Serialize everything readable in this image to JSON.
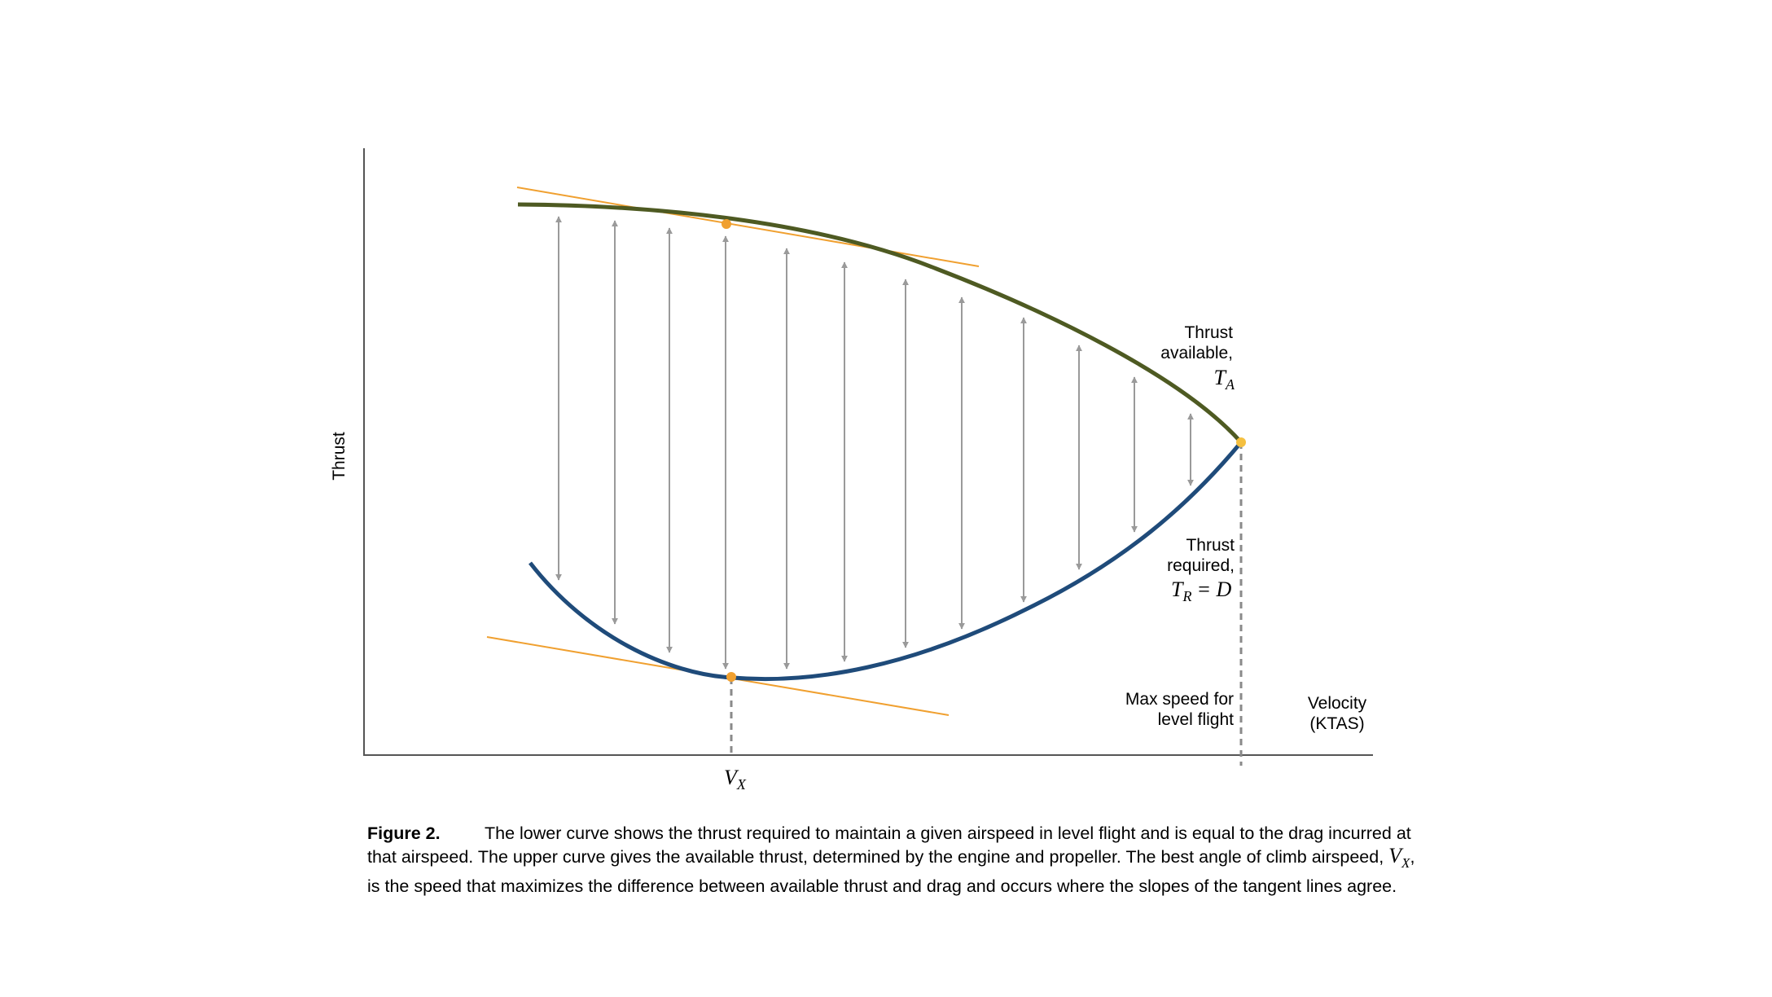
{
  "axes": {
    "y_label": "Thrust",
    "x_label_line1": "Velocity",
    "x_label_line2": "(KTAS)"
  },
  "labels": {
    "thrust_available_line1": "Thrust",
    "thrust_available_line2": "available,",
    "thrust_available_symbol": "T",
    "thrust_available_subscript": "A",
    "thrust_required_line1": "Thrust",
    "thrust_required_line2": "required,",
    "thrust_required_symbol": "T",
    "thrust_required_subscript": "R",
    "thrust_required_equals": "= D",
    "max_speed_line1": "Max speed for",
    "max_speed_line2": "level flight",
    "vx_symbol": "V",
    "vx_subscript": "X"
  },
  "caption": {
    "figure_label": "Figure 2.",
    "text_part1": "The lower curve shows the thrust required to maintain a given airspeed in level flight and is equal to the drag incurred at that airspeed.  The upper curve gives the available thrust, determined by the engine and propeller.  The best angle of climb airspeed, ",
    "vx_symbol": "V",
    "vx_subscript": "X",
    "text_part2": ", is the speed that maximizes the difference between available thrust and drag and occurs where the slopes of the tangent lines agree."
  },
  "colors": {
    "thrust_available_curve": "#4e5a22",
    "thrust_required_curve": "#1f4b7a",
    "tangent_lines": "#f0a030",
    "points": "#f0a030",
    "arrows": "#9a9a9a",
    "axes": "#555555",
    "dashed_guides": "#8a8a8a"
  }
}
